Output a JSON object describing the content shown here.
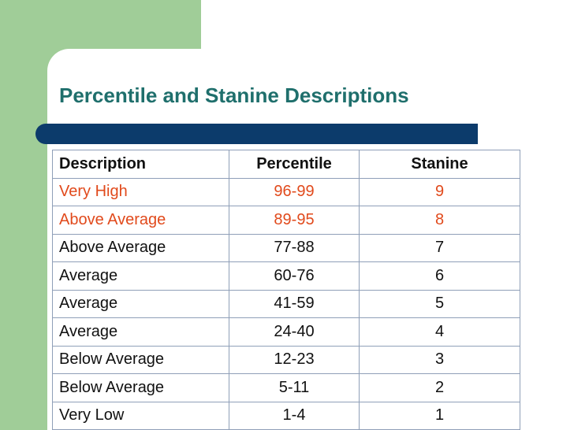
{
  "header": {
    "title": "Percentile and Stanine Descriptions"
  },
  "table": {
    "columns": [
      "Description",
      "Percentile",
      "Stanine"
    ],
    "rows": [
      [
        "Very High",
        "96-99",
        "9"
      ],
      [
        "Above Average",
        "89-95",
        "8"
      ],
      [
        "Above Average",
        "77-88",
        "7"
      ],
      [
        "Average",
        "60-76",
        "6"
      ],
      [
        "Average",
        "41-59",
        "5"
      ],
      [
        "Average",
        "24-40",
        "4"
      ],
      [
        "Below Average",
        "12-23",
        "3"
      ],
      [
        "Below Average",
        "5-11",
        "2"
      ],
      [
        "Very Low",
        "1-4",
        "1"
      ]
    ]
  }
}
